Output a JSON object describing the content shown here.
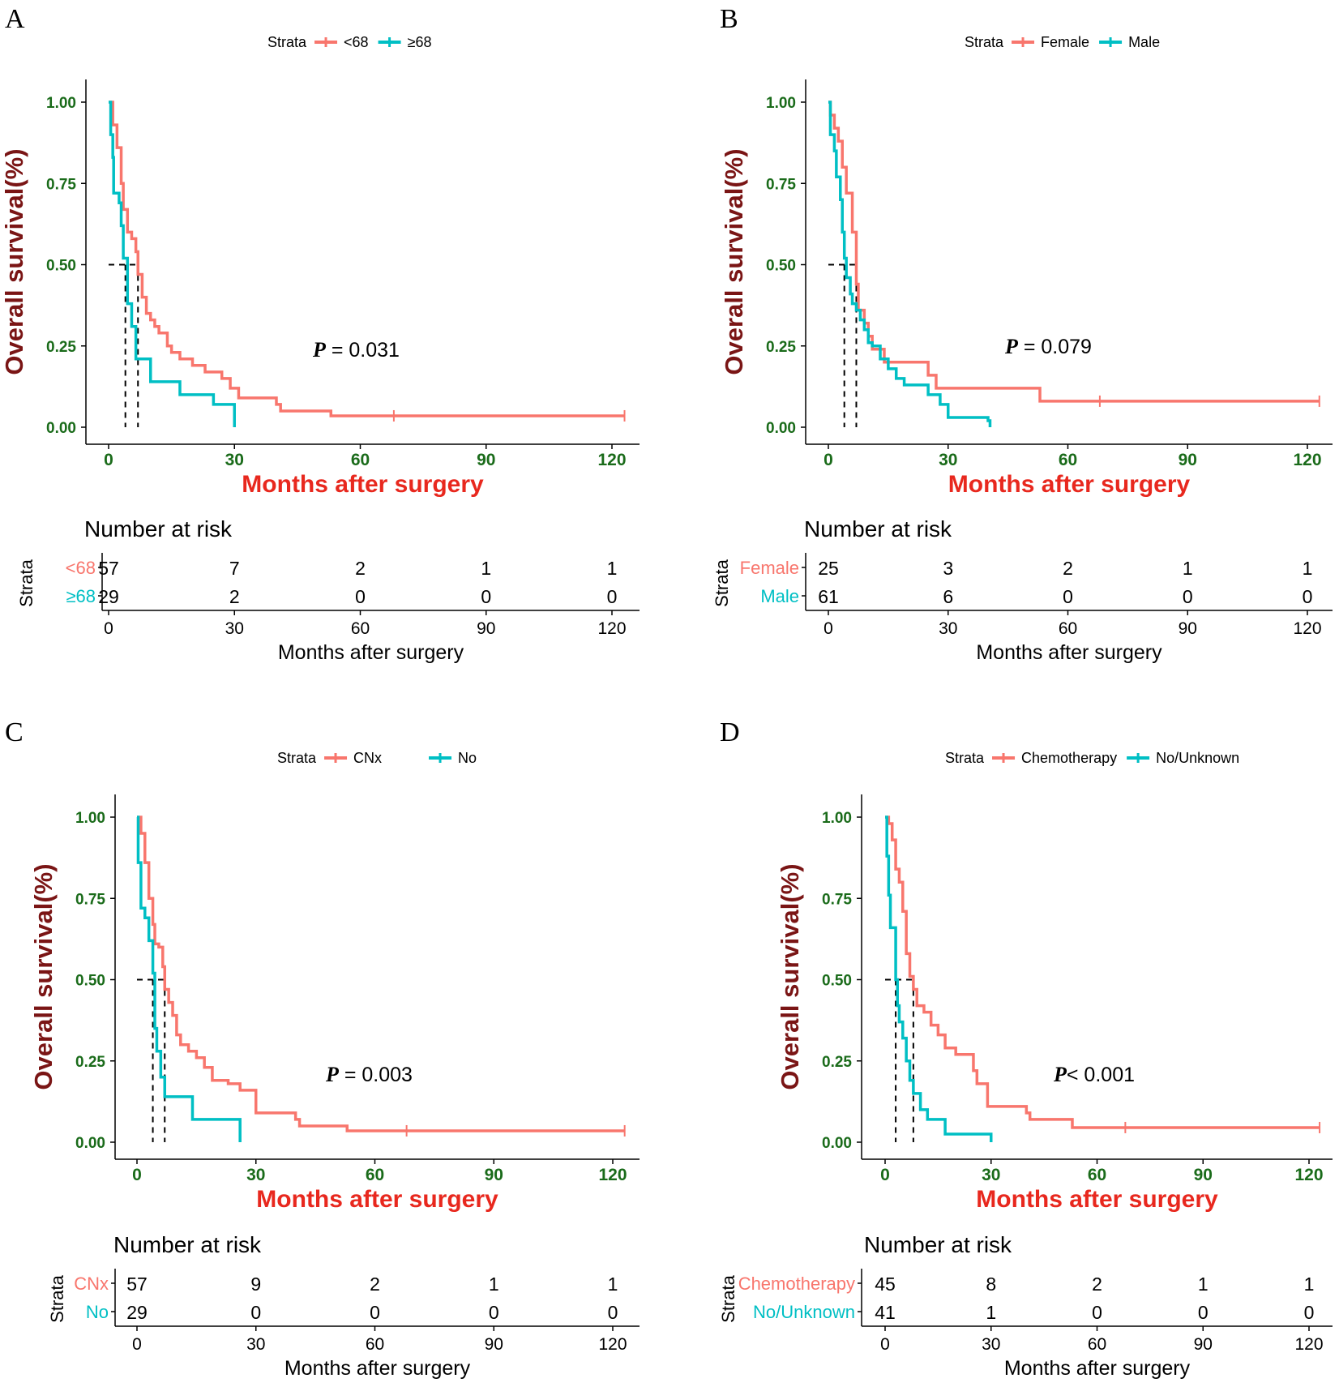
{
  "chart_data": [
    {
      "type": "line",
      "panel": "A",
      "legend_title": "Strata",
      "xlabel": "Months after surgery",
      "ylabel": "Overall survival(%)",
      "xticks": [
        0,
        30,
        60,
        90,
        120
      ],
      "yticks": [
        "0.00",
        "0.25",
        "0.50",
        "0.75",
        "1.00"
      ],
      "xlim": [
        -4,
        126
      ],
      "ylim": [
        0,
        1
      ],
      "p_label": "P",
      "p_value": " = 0.031",
      "median_times": [
        4,
        7
      ],
      "series": [
        {
          "name": "<68",
          "color": "#F8766D",
          "points": [
            [
              0,
              1.0
            ],
            [
              1,
              0.93
            ],
            [
              2,
              0.86
            ],
            [
              3,
              0.75
            ],
            [
              3.5,
              0.67
            ],
            [
              4.5,
              0.6
            ],
            [
              5.5,
              0.58
            ],
            [
              6.5,
              0.54
            ],
            [
              7,
              0.47
            ],
            [
              8,
              0.4
            ],
            [
              9,
              0.35
            ],
            [
              10,
              0.33
            ],
            [
              11,
              0.31
            ],
            [
              12,
              0.29
            ],
            [
              14,
              0.25
            ],
            [
              15,
              0.23
            ],
            [
              17,
              0.21
            ],
            [
              20,
              0.19
            ],
            [
              23,
              0.17
            ],
            [
              27,
              0.15
            ],
            [
              29,
              0.12
            ],
            [
              31,
              0.09
            ],
            [
              40,
              0.07
            ],
            [
              41,
              0.05
            ],
            [
              53,
              0.035
            ],
            [
              123,
              0.035
            ]
          ],
          "censor": [
            [
              68,
              0.035
            ],
            [
              123,
              0.035
            ]
          ]
        },
        {
          "name": "≥68",
          "color": "#00BFC4",
          "points": [
            [
              0,
              1.0
            ],
            [
              0.5,
              0.9
            ],
            [
              1,
              0.83
            ],
            [
              1.2,
              0.72
            ],
            [
              2.5,
              0.69
            ],
            [
              3,
              0.62
            ],
            [
              3.5,
              0.52
            ],
            [
              4.5,
              0.38
            ],
            [
              5.5,
              0.31
            ],
            [
              6.5,
              0.21
            ],
            [
              10,
              0.14
            ],
            [
              17,
              0.1
            ],
            [
              25,
              0.07
            ],
            [
              30,
              0.07
            ],
            [
              30,
              0.0
            ]
          ],
          "censor": []
        }
      ],
      "risk_table": {
        "title": "Number at risk",
        "strata_label": "Strata",
        "xlabel": "Months after surgery",
        "rows": [
          {
            "label": "<68",
            "color": "#F8766D",
            "values": [
              57,
              7,
              2,
              1,
              1
            ]
          },
          {
            "label": "≥68",
            "color": "#00BFC4",
            "values": [
              29,
              2,
              0,
              0,
              0
            ]
          }
        ]
      }
    },
    {
      "type": "line",
      "panel": "B",
      "legend_title": "Strata",
      "xlabel": "Months after surgery",
      "ylabel": "Overall survival(%)",
      "xticks": [
        0,
        30,
        60,
        90,
        120
      ],
      "yticks": [
        "0.00",
        "0.25",
        "0.50",
        "0.75",
        "1.00"
      ],
      "xlim": [
        -6,
        124
      ],
      "ylim": [
        0,
        1
      ],
      "p_label": "P",
      "p_value": " = 0.079",
      "median_times": [
        4,
        7
      ],
      "series": [
        {
          "name": "Female",
          "color": "#F8766D",
          "points": [
            [
              0,
              1.0
            ],
            [
              0.5,
              0.96
            ],
            [
              1.5,
              0.92
            ],
            [
              2.5,
              0.88
            ],
            [
              3.5,
              0.8
            ],
            [
              4.5,
              0.72
            ],
            [
              6,
              0.6
            ],
            [
              7,
              0.44
            ],
            [
              7.5,
              0.36
            ],
            [
              9,
              0.32
            ],
            [
              10,
              0.28
            ],
            [
              11,
              0.24
            ],
            [
              14,
              0.2
            ],
            [
              25,
              0.16
            ],
            [
              27,
              0.12
            ],
            [
              53,
              0.08
            ],
            [
              123,
              0.08
            ]
          ],
          "censor": [
            [
              68,
              0.08
            ],
            [
              123,
              0.08
            ]
          ]
        },
        {
          "name": "Male",
          "color": "#00BFC4",
          "points": [
            [
              0,
              1.0
            ],
            [
              0.5,
              0.9
            ],
            [
              1.5,
              0.85
            ],
            [
              2,
              0.77
            ],
            [
              3,
              0.7
            ],
            [
              3.5,
              0.6
            ],
            [
              4,
              0.52
            ],
            [
              4.5,
              0.46
            ],
            [
              5.5,
              0.41
            ],
            [
              6,
              0.38
            ],
            [
              7,
              0.36
            ],
            [
              8,
              0.33
            ],
            [
              9,
              0.3
            ],
            [
              10,
              0.26
            ],
            [
              11,
              0.25
            ],
            [
              13,
              0.21
            ],
            [
              15,
              0.18
            ],
            [
              17,
              0.15
            ],
            [
              19,
              0.13
            ],
            [
              22,
              0.13
            ],
            [
              25,
              0.1
            ],
            [
              28,
              0.07
            ],
            [
              30,
              0.03
            ],
            [
              40,
              0.02
            ],
            [
              40.5,
              0.0
            ]
          ],
          "censor": []
        }
      ],
      "risk_table": {
        "title": "Number at risk",
        "strata_label": "Strata",
        "xlabel": "Months after surgery",
        "rows": [
          {
            "label": "Female",
            "color": "#F8766D",
            "values": [
              25,
              3,
              2,
              1,
              1
            ]
          },
          {
            "label": "Male",
            "color": "#00BFC4",
            "values": [
              61,
              6,
              0,
              0,
              0
            ]
          }
        ]
      }
    },
    {
      "type": "line",
      "panel": "C",
      "legend_title": "Strata",
      "xlabel": "Months after surgery",
      "ylabel": "Overall survival(%)",
      "xticks": [
        0,
        30,
        60,
        90,
        120
      ],
      "yticks": [
        "0.00",
        "0.25",
        "0.50",
        "0.75",
        "1.00"
      ],
      "xlim": [
        -6,
        124
      ],
      "ylim": [
        0,
        1
      ],
      "p_label": "P",
      "p_value": " = 0.003",
      "median_times": [
        4,
        7
      ],
      "series": [
        {
          "name": "CNx",
          "color": "#F8766D",
          "points": [
            [
              0,
              1.0
            ],
            [
              1,
              0.95
            ],
            [
              2,
              0.86
            ],
            [
              3,
              0.75
            ],
            [
              4,
              0.67
            ],
            [
              4.5,
              0.61
            ],
            [
              5.5,
              0.6
            ],
            [
              6.5,
              0.54
            ],
            [
              7,
              0.47
            ],
            [
              8,
              0.43
            ],
            [
              9,
              0.39
            ],
            [
              10,
              0.33
            ],
            [
              11,
              0.3
            ],
            [
              13,
              0.28
            ],
            [
              15,
              0.26
            ],
            [
              17,
              0.23
            ],
            [
              19,
              0.19
            ],
            [
              23,
              0.18
            ],
            [
              26,
              0.16
            ],
            [
              30,
              0.09
            ],
            [
              40,
              0.07
            ],
            [
              41,
              0.05
            ],
            [
              53,
              0.035
            ],
            [
              123,
              0.035
            ]
          ],
          "censor": [
            [
              68,
              0.035
            ],
            [
              123,
              0.035
            ]
          ]
        },
        {
          "name": "No",
          "color": "#00BFC4",
          "points": [
            [
              0,
              1.0
            ],
            [
              0.3,
              0.86
            ],
            [
              1,
              0.72
            ],
            [
              2,
              0.69
            ],
            [
              3,
              0.62
            ],
            [
              4,
              0.52
            ],
            [
              4.5,
              0.35
            ],
            [
              5,
              0.28
            ],
            [
              6,
              0.2
            ],
            [
              7,
              0.14
            ],
            [
              8,
              0.14
            ],
            [
              14,
              0.07
            ],
            [
              26,
              0.07
            ],
            [
              26,
              0.0
            ]
          ],
          "censor": []
        }
      ],
      "risk_table": {
        "title": "Number at risk",
        "strata_label": "Strata",
        "xlabel": "Months after surgery",
        "rows": [
          {
            "label": "CNx",
            "color": "#F8766D",
            "values": [
              57,
              9,
              2,
              1,
              1
            ]
          },
          {
            "label": "No",
            "color": "#00BFC4",
            "values": [
              29,
              0,
              0,
              0,
              0
            ]
          }
        ]
      }
    },
    {
      "type": "line",
      "panel": "D",
      "legend_title": "Strata",
      "xlabel": "Months after surgery",
      "ylabel": "Overall survival(%)",
      "xticks": [
        0,
        30,
        60,
        90,
        120
      ],
      "yticks": [
        "0.00",
        "0.25",
        "0.50",
        "0.75",
        "1.00"
      ],
      "xlim": [
        -6,
        124
      ],
      "ylim": [
        0,
        1
      ],
      "p_label": "P",
      "p_value": "< 0.001",
      "median_times": [
        3,
        8
      ],
      "series": [
        {
          "name": "Chemotherapy",
          "color": "#F8766D",
          "points": [
            [
              0,
              1.0
            ],
            [
              1,
              0.98
            ],
            [
              2,
              0.93
            ],
            [
              3,
              0.84
            ],
            [
              4,
              0.8
            ],
            [
              5,
              0.71
            ],
            [
              6,
              0.58
            ],
            [
              7,
              0.51
            ],
            [
              8,
              0.47
            ],
            [
              9,
              0.42
            ],
            [
              11,
              0.4
            ],
            [
              13,
              0.36
            ],
            [
              15,
              0.33
            ],
            [
              17,
              0.29
            ],
            [
              20,
              0.27
            ],
            [
              25,
              0.22
            ],
            [
              26,
              0.18
            ],
            [
              29,
              0.11
            ],
            [
              40,
              0.09
            ],
            [
              41,
              0.07
            ],
            [
              53,
              0.045
            ],
            [
              123,
              0.045
            ]
          ],
          "censor": [
            [
              68,
              0.045
            ],
            [
              123,
              0.045
            ]
          ]
        },
        {
          "name": "No/Unknown",
          "color": "#00BFC4",
          "points": [
            [
              0,
              1.0
            ],
            [
              0.5,
              0.88
            ],
            [
              1,
              0.76
            ],
            [
              1.5,
              0.66
            ],
            [
              3,
              0.5
            ],
            [
              3.5,
              0.42
            ],
            [
              4,
              0.37
            ],
            [
              5,
              0.32
            ],
            [
              6,
              0.25
            ],
            [
              7,
              0.19
            ],
            [
              8,
              0.15
            ],
            [
              10,
              0.1
            ],
            [
              12,
              0.07
            ],
            [
              17,
              0.025
            ],
            [
              30,
              0.025
            ],
            [
              30,
              0.0
            ]
          ],
          "censor": []
        }
      ],
      "risk_table": {
        "title": "Number at risk",
        "strata_label": "Strata",
        "xlabel": "Months after surgery",
        "rows": [
          {
            "label": "Chemotherapy",
            "color": "#F8766D",
            "values": [
              45,
              8,
              2,
              1,
              1
            ]
          },
          {
            "label": "No/Unknown",
            "color": "#00BFC4",
            "values": [
              41,
              1,
              0,
              0,
              0
            ]
          }
        ]
      }
    }
  ]
}
